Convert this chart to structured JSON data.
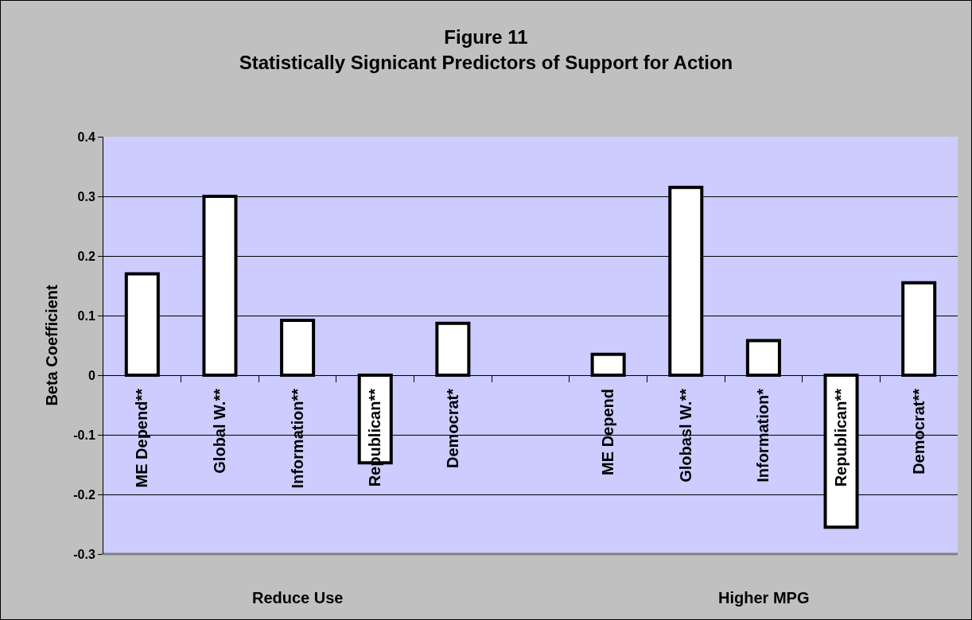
{
  "chart_data": {
    "type": "bar",
    "title": "Figure 11",
    "subtitle": "Statistically Signicant Predictors of Support for Action",
    "ylabel": "Beta Coefficient",
    "categories": [
      "ME Depend**",
      "Global W.**",
      "Information**",
      "Republican**",
      "Democrat*",
      null,
      "ME Depend",
      "Globasl W.**",
      "Information*",
      "Republican**",
      "Democrat**"
    ],
    "values": [
      0.17,
      0.3,
      0.092,
      -0.147,
      0.087,
      null,
      0.035,
      0.315,
      0.058,
      -0.255,
      0.155
    ],
    "color": "#ffffff",
    "ylim": [
      -0.3,
      0.4
    ],
    "yticks": [
      -0.3,
      -0.2,
      -0.1,
      0,
      0.1,
      0.2,
      0.3,
      0.4
    ],
    "grid": "y",
    "annotations": [
      "Reduce Use",
      "Higher MPG"
    ]
  }
}
